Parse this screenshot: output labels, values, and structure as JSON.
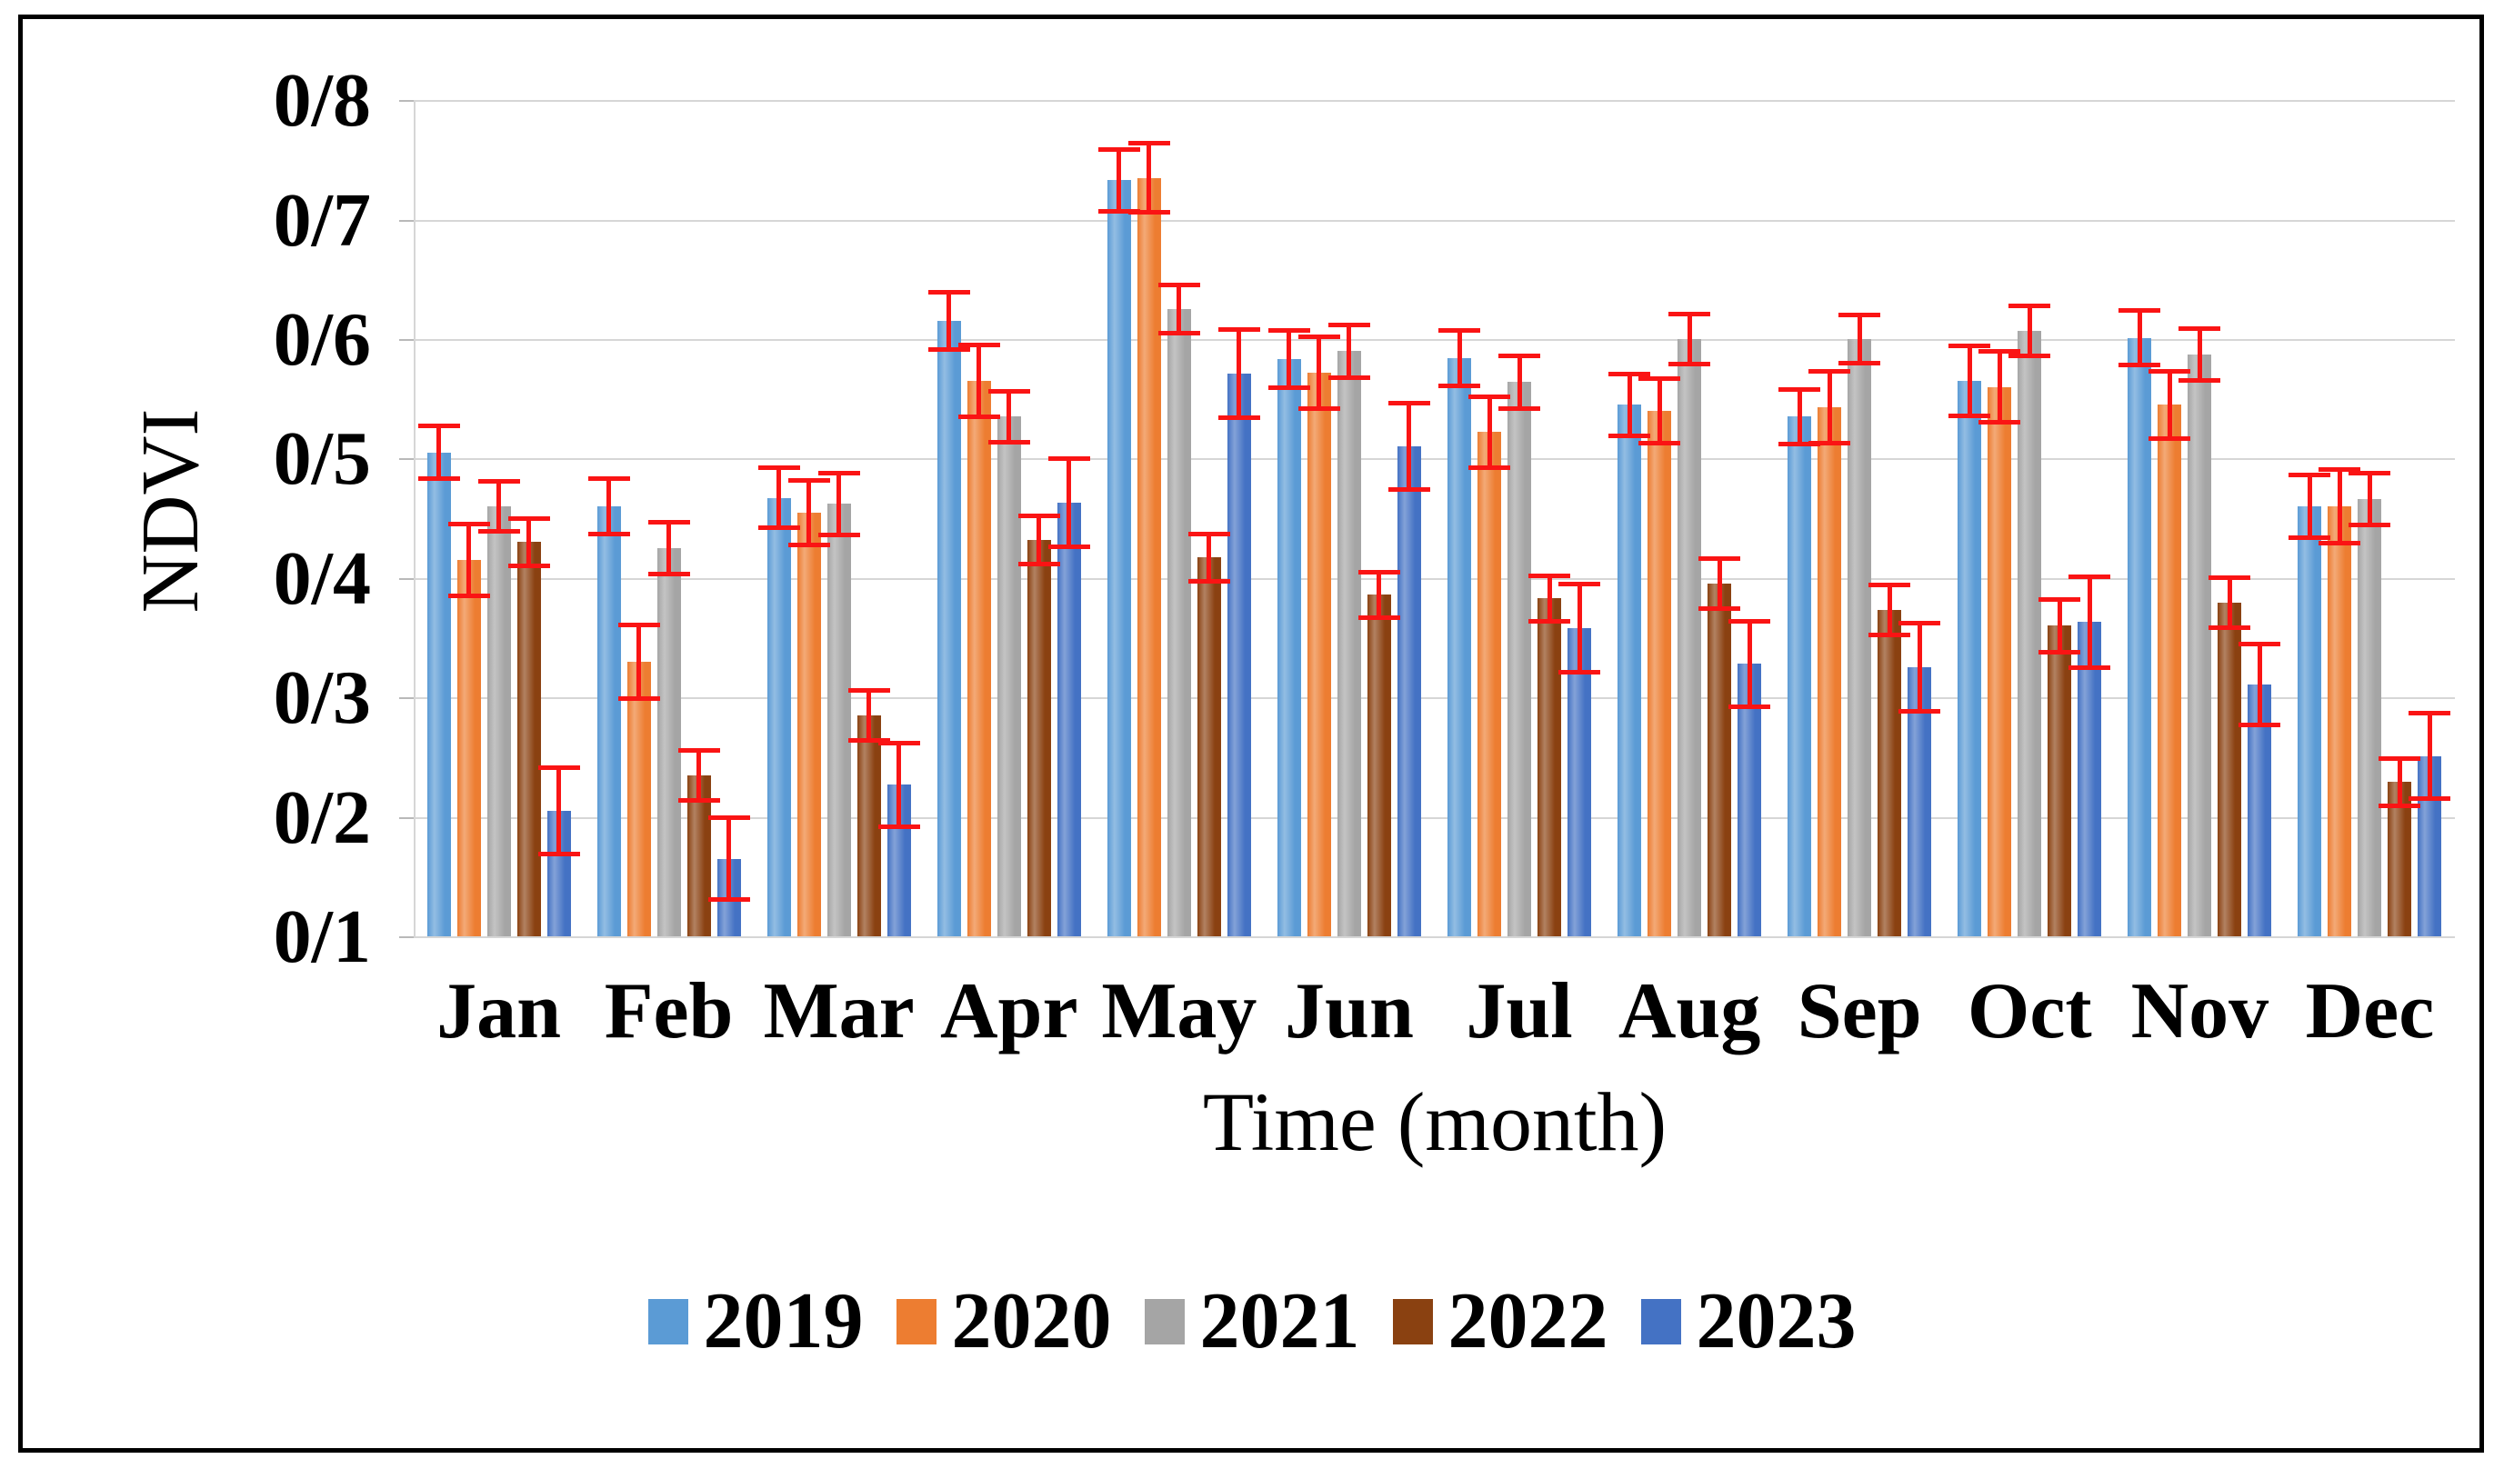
{
  "chart_data": {
    "type": "bar",
    "title": "",
    "ylabel": "NDVI",
    "xlabel": "Time (month)",
    "decimal_separator": "/",
    "ylim": [
      0.1,
      0.83
    ],
    "grid": true,
    "legend_position": "bottom",
    "gridline_color": "#d6d6d6",
    "error_bar_color": "#fa1414",
    "categories": [
      "Jan",
      "Feb",
      "Mar",
      "Apr",
      "May",
      "Jun",
      "Jul",
      "Aug",
      "Sep",
      "Oct",
      "Nov",
      "Dec"
    ],
    "y_ticks": [
      {
        "label": "0/8",
        "value": 0.8
      },
      {
        "label": "0/7",
        "value": 0.7
      },
      {
        "label": "0/6",
        "value": 0.6
      },
      {
        "label": "0/5",
        "value": 0.5
      },
      {
        "label": "0/4",
        "value": 0.4
      },
      {
        "label": "0/3",
        "value": 0.3
      },
      {
        "label": "0/2",
        "value": 0.2
      },
      {
        "label": "0/1",
        "value": 0.1
      }
    ],
    "series": [
      {
        "name": "2019",
        "color": "#5B9BD5",
        "values": [
          0.505,
          0.46,
          0.467,
          0.615,
          0.733,
          0.583,
          0.584,
          0.545,
          0.535,
          0.565,
          0.601,
          0.46
        ],
        "errors": [
          0.022,
          0.023,
          0.025,
          0.024,
          0.026,
          0.024,
          0.023,
          0.026,
          0.023,
          0.029,
          0.023,
          0.026
        ]
      },
      {
        "name": "2020",
        "color": "#ED7D31",
        "values": [
          0.415,
          0.33,
          0.455,
          0.565,
          0.735,
          0.572,
          0.522,
          0.54,
          0.543,
          0.56,
          0.545,
          0.46
        ],
        "errors": [
          0.03,
          0.031,
          0.027,
          0.03,
          0.029,
          0.03,
          0.03,
          0.027,
          0.03,
          0.03,
          0.028,
          0.031
        ]
      },
      {
        "name": "2021",
        "color": "#A5A5A5",
        "values": [
          0.46,
          0.425,
          0.462,
          0.535,
          0.625,
          0.59,
          0.564,
          0.6,
          0.6,
          0.607,
          0.587,
          0.466
        ],
        "errors": [
          0.021,
          0.022,
          0.026,
          0.021,
          0.02,
          0.022,
          0.022,
          0.021,
          0.02,
          0.021,
          0.022,
          0.022
        ]
      },
      {
        "name": "2022",
        "color": "#8A4111",
        "values": [
          0.43,
          0.235,
          0.285,
          0.432,
          0.417,
          0.386,
          0.383,
          0.395,
          0.373,
          0.36,
          0.379,
          0.229
        ],
        "errors": [
          0.02,
          0.021,
          0.021,
          0.02,
          0.02,
          0.019,
          0.019,
          0.021,
          0.021,
          0.022,
          0.021,
          0.02
        ]
      },
      {
        "name": "2023",
        "color": "#4472C4",
        "values": [
          0.205,
          0.165,
          0.227,
          0.463,
          0.571,
          0.51,
          0.358,
          0.328,
          0.325,
          0.363,
          0.311,
          0.251
        ],
        "errors": [
          0.036,
          0.034,
          0.035,
          0.037,
          0.037,
          0.036,
          0.037,
          0.036,
          0.037,
          0.038,
          0.034,
          0.036
        ]
      }
    ]
  }
}
